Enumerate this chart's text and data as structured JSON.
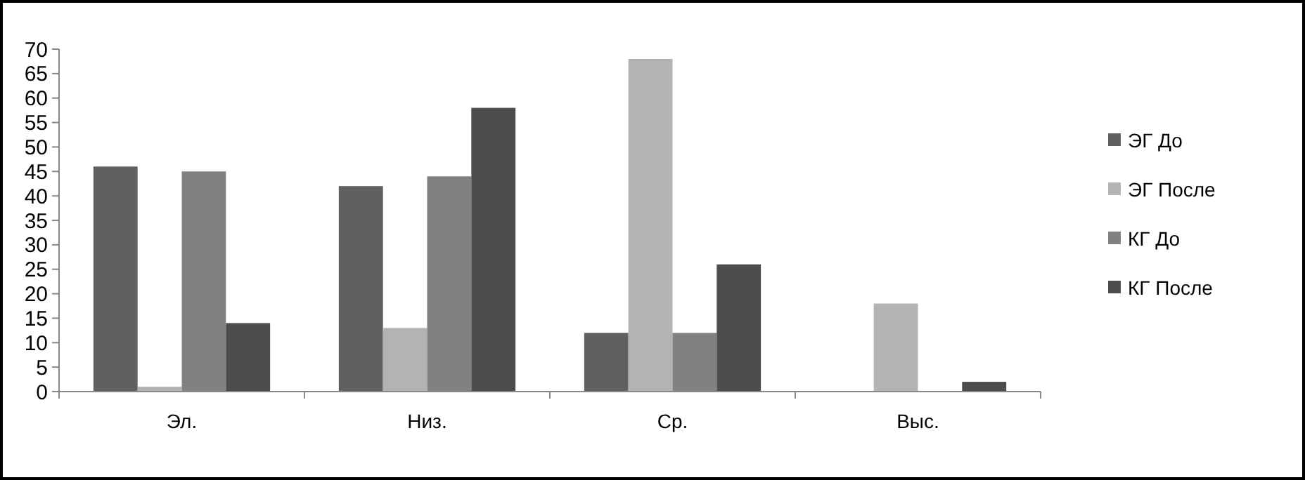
{
  "chart_data": {
    "type": "bar",
    "categories": [
      "Эл.",
      "Низ.",
      "Ср.",
      "Выс."
    ],
    "series": [
      {
        "name": "ЭГ До",
        "color": "#606060",
        "values": [
          46,
          42,
          12,
          0
        ]
      },
      {
        "name": "ЭГ После",
        "color": "#b3b3b3",
        "values": [
          1,
          13,
          68,
          18
        ]
      },
      {
        "name": "КГ  До",
        "color": "#818181",
        "values": [
          45,
          44,
          12,
          0
        ]
      },
      {
        "name": "КГ После",
        "color": "#4d4d4d",
        "values": [
          14,
          58,
          26,
          2
        ]
      }
    ],
    "ylim": [
      0,
      70
    ],
    "yticks": [
      0,
      5,
      10,
      15,
      20,
      25,
      30,
      35,
      40,
      45,
      50,
      55,
      60,
      65,
      70
    ],
    "grid": false,
    "legend": "right"
  }
}
